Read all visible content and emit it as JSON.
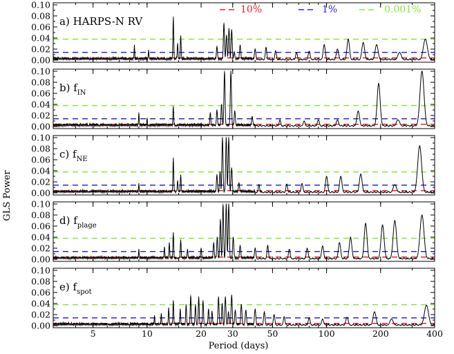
{
  "chart_data": {
    "type": "line",
    "xlabel": "Period (days)",
    "ylabel": "GLS Power",
    "xscale": "log",
    "xlim": [
      3,
      400
    ],
    "ylim": [
      0,
      0.1
    ],
    "grid": false,
    "legend_position": "top-right, inside first panel",
    "x_ticks": [
      5,
      10,
      20,
      30,
      50,
      100,
      200,
      400
    ],
    "y_ticks": [
      "0.00",
      "0.02",
      "0.04",
      "0.06",
      "0.08",
      "0.10"
    ],
    "fap_levels": [
      {
        "name": "10%",
        "value": 0.004,
        "color": "#e8242d"
      },
      {
        "name": "1%",
        "value": 0.014,
        "color": "#2a2ad6"
      },
      {
        "name": "0.001%",
        "value": 0.038,
        "color": "#86e83a"
      }
    ],
    "panels": [
      {
        "letter": "a)",
        "label": "HARPS-N RV",
        "label_sub": "",
        "peaks": [
          [
            14.0,
            0.078
          ],
          [
            14.8,
            0.03
          ],
          [
            15.4,
            0.044
          ],
          [
            8.5,
            0.027
          ],
          [
            10.2,
            0.018
          ],
          [
            24.5,
            0.025
          ],
          [
            26.8,
            0.067
          ],
          [
            27.7,
            0.045
          ],
          [
            28.6,
            0.057
          ],
          [
            29.6,
            0.055
          ],
          [
            30.6,
            0.015
          ],
          [
            33.0,
            0.027
          ],
          [
            40.0,
            0.02
          ],
          [
            46.0,
            0.023
          ],
          [
            52.0,
            0.017
          ],
          [
            68.0,
            0.014
          ],
          [
            80.0,
            0.016
          ],
          [
            97.0,
            0.028
          ],
          [
            115.0,
            0.02
          ],
          [
            132.0,
            0.038
          ],
          [
            160.0,
            0.032
          ],
          [
            190.0,
            0.028
          ],
          [
            255.0,
            0.014
          ],
          [
            355.0,
            0.038
          ]
        ]
      },
      {
        "letter": "b)",
        "label": "f",
        "label_sub": "IN",
        "peaks": [
          [
            14.0,
            0.036
          ],
          [
            9.0,
            0.025
          ],
          [
            10.0,
            0.015
          ],
          [
            22.5,
            0.025
          ],
          [
            24.5,
            0.03
          ],
          [
            26.0,
            0.04
          ],
          [
            27.0,
            0.1
          ],
          [
            29.3,
            0.1
          ],
          [
            30.8,
            0.028
          ],
          [
            38.5,
            0.018
          ],
          [
            55.0,
            0.012
          ],
          [
            75.0,
            0.01
          ],
          [
            90.0,
            0.012
          ],
          [
            115.0,
            0.012
          ],
          [
            150.0,
            0.028
          ],
          [
            195.0,
            0.078
          ],
          [
            250.0,
            0.012
          ],
          [
            340.0,
            0.1
          ]
        ]
      },
      {
        "letter": "c)",
        "label": "f",
        "label_sub": "NE",
        "peaks": [
          [
            14.0,
            0.063
          ],
          [
            14.8,
            0.022
          ],
          [
            15.4,
            0.032
          ],
          [
            9.0,
            0.017
          ],
          [
            24.5,
            0.033
          ],
          [
            25.5,
            0.038
          ],
          [
            26.3,
            0.1
          ],
          [
            27.6,
            0.1
          ],
          [
            28.5,
            0.1
          ],
          [
            29.6,
            0.045
          ],
          [
            32.5,
            0.018
          ],
          [
            42.0,
            0.015
          ],
          [
            60.0,
            0.016
          ],
          [
            73.0,
            0.017
          ],
          [
            100.0,
            0.03
          ],
          [
            120.0,
            0.03
          ],
          [
            155.0,
            0.034
          ],
          [
            240.0,
            0.015
          ],
          [
            330.0,
            0.085
          ]
        ]
      },
      {
        "letter": "d)",
        "label": "f",
        "label_sub": "plage",
        "peaks": [
          [
            14.0,
            0.048
          ],
          [
            12.5,
            0.022
          ],
          [
            13.3,
            0.03
          ],
          [
            15.4,
            0.035
          ],
          [
            16.8,
            0.018
          ],
          [
            9.0,
            0.018
          ],
          [
            20.0,
            0.02
          ],
          [
            23.5,
            0.03
          ],
          [
            24.6,
            0.04
          ],
          [
            25.6,
            0.072
          ],
          [
            26.5,
            0.1
          ],
          [
            27.6,
            0.1
          ],
          [
            28.5,
            0.1
          ],
          [
            30.2,
            0.04
          ],
          [
            33.0,
            0.025
          ],
          [
            40.0,
            0.02
          ],
          [
            47.0,
            0.025
          ],
          [
            62.0,
            0.018
          ],
          [
            78.0,
            0.02
          ],
          [
            95.0,
            0.024
          ],
          [
            118.0,
            0.03
          ],
          [
            136.0,
            0.04
          ],
          [
            165.0,
            0.065
          ],
          [
            205.0,
            0.062
          ],
          [
            240.0,
            0.07
          ],
          [
            340.0,
            0.08
          ]
        ]
      },
      {
        "letter": "e)",
        "label": "f",
        "label_sub": "spot",
        "peaks": [
          [
            14.0,
            0.045
          ],
          [
            13.2,
            0.032
          ],
          [
            12.0,
            0.022
          ],
          [
            11.0,
            0.018
          ],
          [
            15.3,
            0.03
          ],
          [
            16.5,
            0.038
          ],
          [
            17.5,
            0.055
          ],
          [
            18.6,
            0.038
          ],
          [
            19.4,
            0.052
          ],
          [
            20.5,
            0.045
          ],
          [
            22.0,
            0.03
          ],
          [
            23.0,
            0.026
          ],
          [
            25.0,
            0.052
          ],
          [
            26.2,
            0.04
          ],
          [
            27.3,
            0.052
          ],
          [
            28.4,
            0.025
          ],
          [
            29.6,
            0.055
          ],
          [
            31.0,
            0.028
          ],
          [
            33.5,
            0.038
          ],
          [
            35.5,
            0.028
          ],
          [
            40.0,
            0.03
          ],
          [
            45.0,
            0.025
          ],
          [
            51.0,
            0.02
          ],
          [
            58.0,
            0.016
          ],
          [
            80.0,
            0.014
          ],
          [
            95.0,
            0.012
          ],
          [
            130.0,
            0.015
          ],
          [
            185.0,
            0.025
          ],
          [
            230.0,
            0.012
          ],
          [
            360.0,
            0.037
          ]
        ]
      }
    ]
  }
}
